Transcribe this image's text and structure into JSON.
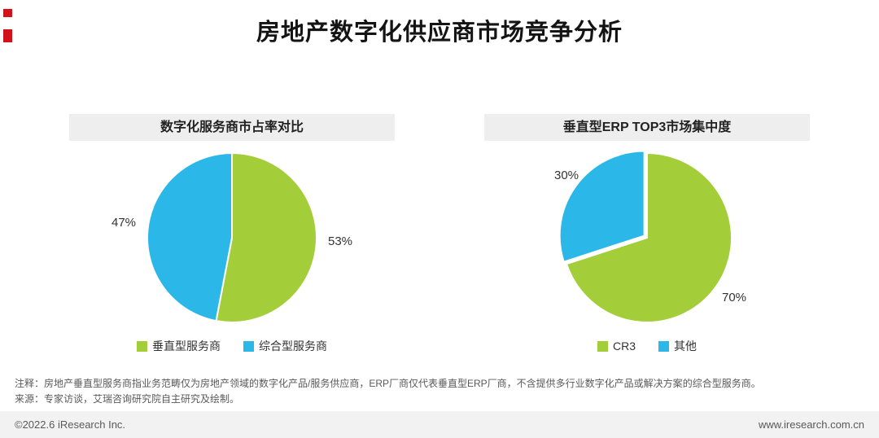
{
  "page": {
    "title": "房地产数字化供应商市场竞争分析"
  },
  "chart_data": [
    {
      "type": "pie",
      "title": "数字化服务商市占率对比",
      "labels": [
        "垂直型服务商",
        "综合型服务商"
      ],
      "values": [
        53,
        47
      ],
      "value_labels": [
        "53%",
        "47%"
      ],
      "colors": [
        "#a4ce39",
        "#2bb8e8"
      ],
      "explode": [
        0,
        0
      ],
      "legend_position": "bottom"
    },
    {
      "type": "pie",
      "title": "垂直型ERP TOP3市场集中度",
      "labels": [
        "CR3",
        "其他"
      ],
      "values": [
        70,
        30
      ],
      "value_labels": [
        "70%",
        "30%"
      ],
      "colors": [
        "#a4ce39",
        "#2bb8e8"
      ],
      "explode": [
        0,
        0.04
      ],
      "legend_position": "bottom"
    }
  ],
  "notes": [
    "注释：房地产垂直型服务商指业务范畴仅为房地产领域的数字化产品/服务供应商，ERP厂商仅代表垂直型ERP厂商，不含提供多行业数字化产品或解决方案的综合型服务商。",
    "来源：专家访谈，艾瑞咨询研究院自主研究及绘制。"
  ],
  "footer": {
    "left": "©2022.6 iResearch Inc.",
    "right": "www.iresearch.com.cn"
  },
  "brand": {
    "accent_red": "#d0121b",
    "green": "#a4ce39",
    "cyan": "#2bb8e8",
    "header_bg": "#eeeeee",
    "footer_bg": "#f2f2f2"
  }
}
